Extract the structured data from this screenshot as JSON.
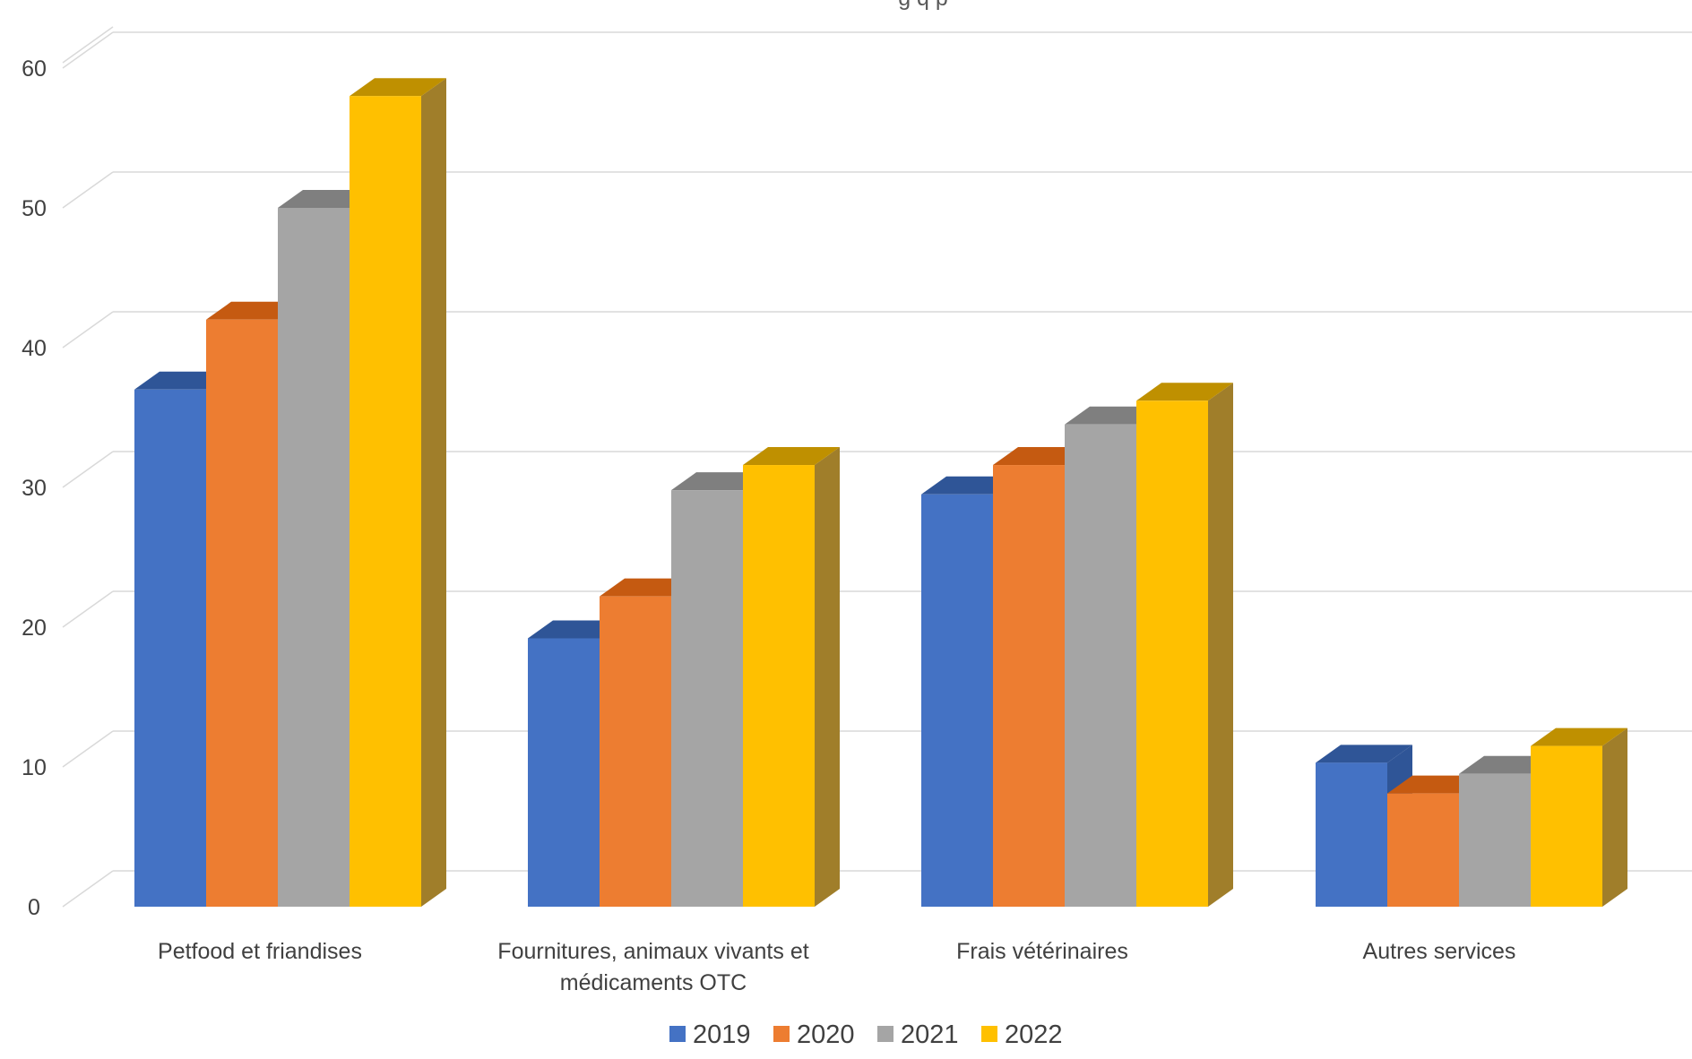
{
  "chart_data": {
    "type": "bar",
    "title": "",
    "title_visible_fragment": "g q p",
    "xlabel": "",
    "ylabel": "",
    "ylim": [
      0,
      62
    ],
    "yticks": [
      0,
      10,
      20,
      30,
      40,
      50,
      60
    ],
    "grid": true,
    "legend_placement": "bottom",
    "style": "3d-clustered-column",
    "categories": [
      [
        "Petfood et friandises"
      ],
      [
        "Fournitures, animaux vivants et",
        "médicaments OTC"
      ],
      [
        "Frais vétérinaires"
      ],
      [
        "Autres services"
      ]
    ],
    "series": [
      {
        "name": "2019",
        "color": "#4472C4",
        "top_color": "#2F5597",
        "side_color": "#2F5597",
        "values": [
          37.0,
          19.2,
          29.5,
          10.3
        ]
      },
      {
        "name": "2020",
        "color": "#ED7D31",
        "top_color": "#C55A11",
        "side_color": "#C55A11",
        "values": [
          42.0,
          22.2,
          31.6,
          8.1
        ]
      },
      {
        "name": "2021",
        "color": "#A5A5A5",
        "top_color": "#7F7F7F",
        "side_color": "#7F7F7F",
        "values": [
          50.0,
          29.8,
          34.5,
          9.5
        ]
      },
      {
        "name": "2022",
        "color": "#FFC000",
        "top_color": "#BF9000",
        "side_color": "#A07E2A",
        "values": [
          58.0,
          31.6,
          36.2,
          11.5
        ]
      }
    ]
  }
}
